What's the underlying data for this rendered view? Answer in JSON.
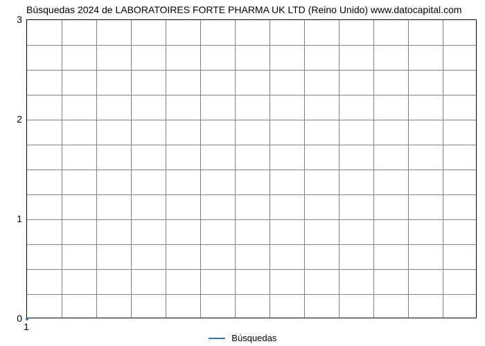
{
  "chart": {
    "type": "line",
    "title": "Búsquedas 2024 de LABORATOIRES FORTE PHARMA UK LTD (Reino Unido) www.datocapital.com",
    "title_fontsize": 14,
    "title_color": "#000000",
    "background_color": "#ffffff",
    "plot_border_color": "#000000",
    "grid_color": "#808080",
    "xlim": [
      1,
      1
    ],
    "ylim": [
      0,
      3
    ],
    "xticks": [
      1
    ],
    "yticks": [
      0,
      1,
      2,
      3
    ],
    "x_minor_gridlines": 12,
    "y_minor_per_major": 4,
    "series": [
      {
        "name": "Búsquedas",
        "color": "#1f77b4",
        "line_width": 2,
        "x": [
          1
        ],
        "y": [
          0
        ]
      }
    ],
    "legend": {
      "position": "bottom-center",
      "fontsize": 13
    }
  }
}
